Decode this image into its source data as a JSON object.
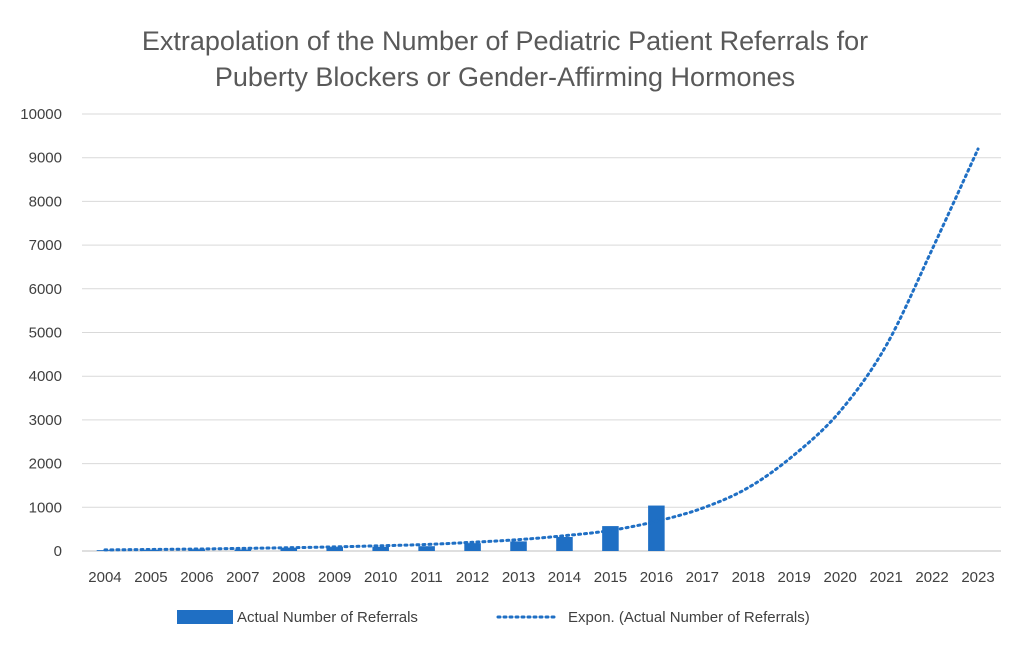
{
  "chart_data": {
    "type": "bar",
    "title_lines": [
      "Extrapolation of the Number of Pediatric Patient Referrals for",
      "Puberty Blockers or Gender-Affirming Hormones"
    ],
    "categories": [
      "2004",
      "2005",
      "2006",
      "2007",
      "2008",
      "2009",
      "2010",
      "2011",
      "2012",
      "2013",
      "2014",
      "2015",
      "2016",
      "2017",
      "2018",
      "2019",
      "2020",
      "2021",
      "2022",
      "2023"
    ],
    "ylim": [
      0,
      10000
    ],
    "yticks": [
      0,
      1000,
      2000,
      3000,
      4000,
      5000,
      6000,
      7000,
      8000,
      9000,
      10000
    ],
    "grid": true,
    "legend_position": "bottom",
    "series": [
      {
        "name": "Actual Number of Referrals",
        "kind": "bar",
        "color": "#1f6fc4",
        "values": [
          20,
          25,
          40,
          35,
          70,
          90,
          95,
          110,
          180,
          220,
          320,
          570,
          1040,
          null,
          null,
          null,
          null,
          null,
          null,
          null
        ]
      },
      {
        "name": "Expon. (Actual Number of Referrals)",
        "kind": "dotted-line",
        "color": "#1f6fc4",
        "values": [
          25,
          35,
          45,
          60,
          75,
          95,
          120,
          150,
          200,
          260,
          350,
          470,
          680,
          980,
          1450,
          2200,
          3200,
          4700,
          6900,
          9200
        ]
      }
    ]
  }
}
